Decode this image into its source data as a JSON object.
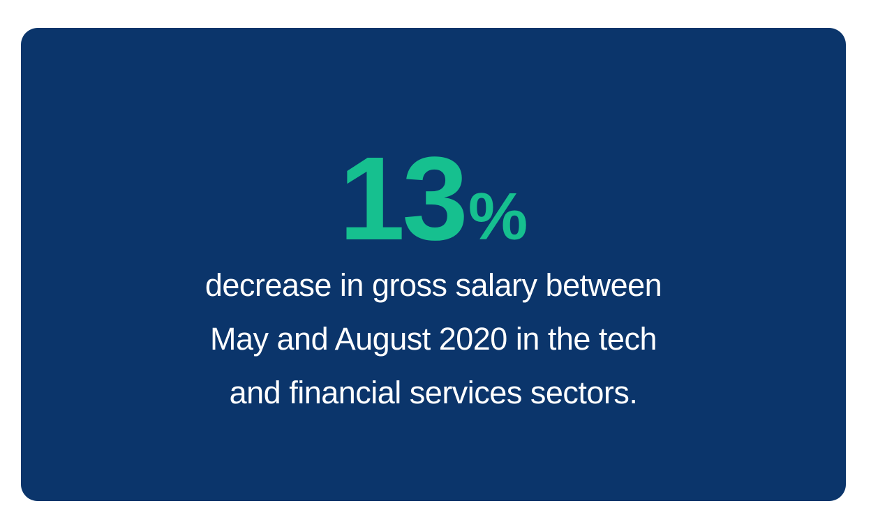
{
  "stat": {
    "value": "13",
    "unit": "%"
  },
  "description": [
    "decrease in gross salary between",
    "May and August 2020 in the tech",
    "and financial services sectors."
  ]
}
